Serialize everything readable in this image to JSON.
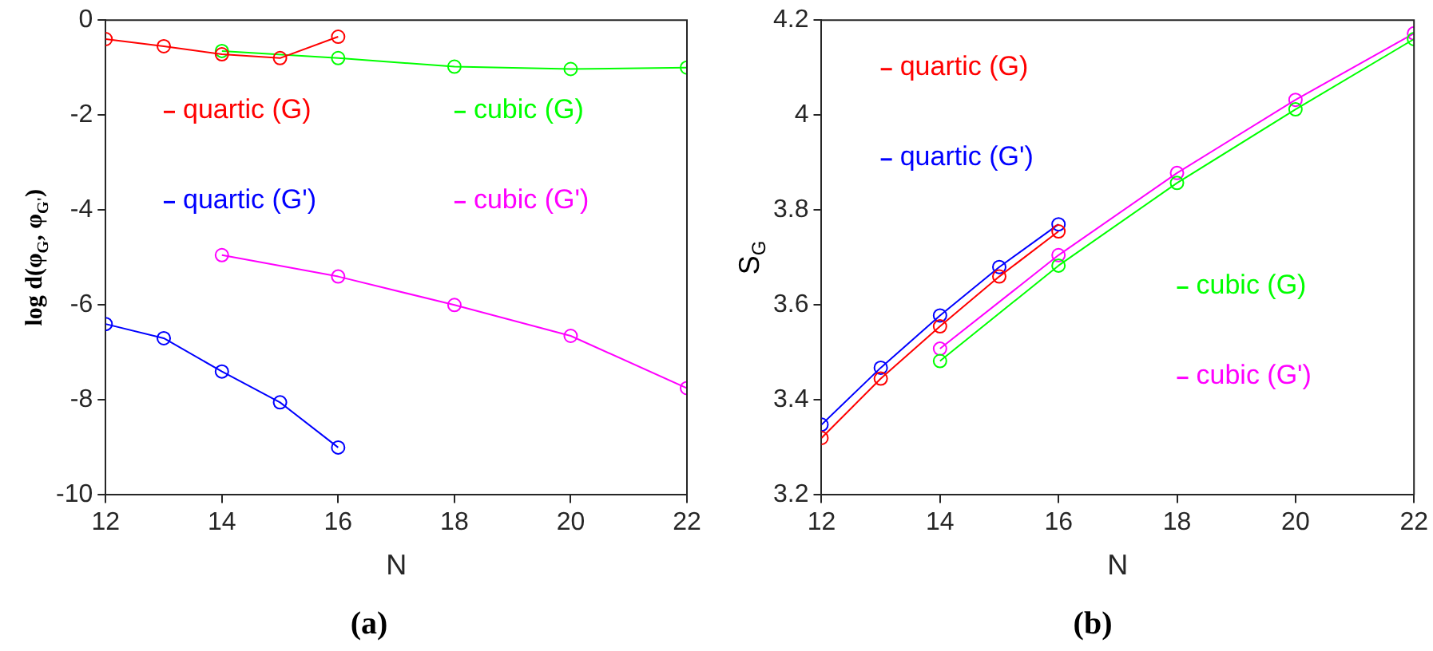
{
  "chart_data": [
    {
      "type": "line",
      "title": "(a)",
      "xlabel": "N",
      "ylabel": "log d(φ$_{G}$, φ$_{G'}$)",
      "xlim": [
        12,
        22
      ],
      "xticks": [
        12,
        14,
        16,
        18,
        20,
        22
      ],
      "ylim": [
        -10,
        0
      ],
      "yticks": [
        -10,
        -8,
        -6,
        -4,
        -2,
        0
      ],
      "marker": "circle",
      "grid": false,
      "legend": "top",
      "series": [
        {
          "name": "quartic (G)",
          "color": "#ff0000",
          "x": [
            12,
            13,
            14,
            15,
            16
          ],
          "values": [
            -0.4,
            -0.55,
            -0.72,
            -0.8,
            -0.35
          ]
        },
        {
          "name": "cubic (G)",
          "color": "#00ff00",
          "x": [
            14,
            16,
            18,
            20,
            22
          ],
          "values": [
            -0.65,
            -0.8,
            -0.98,
            -1.03,
            -1.0
          ]
        },
        {
          "name": "quartic (G')",
          "color": "#0000ff",
          "x": [
            12,
            13,
            14,
            15,
            16
          ],
          "values": [
            -6.4,
            -6.7,
            -7.4,
            -8.05,
            -9.0
          ]
        },
        {
          "name": "cubic (G')",
          "color": "#ff00ff",
          "x": [
            14,
            16,
            18,
            20,
            22
          ],
          "values": [
            -4.95,
            -5.4,
            -6.0,
            -6.65,
            -7.75
          ]
        }
      ]
    },
    {
      "type": "line",
      "title": "(b)",
      "xlabel": "N",
      "ylabel": "S$_{G}$",
      "xlim": [
        12,
        22
      ],
      "xticks": [
        12,
        14,
        16,
        18,
        20,
        22
      ],
      "ylim": [
        3.2,
        4.2
      ],
      "yticks": [
        3.2,
        3.4,
        3.6,
        3.8,
        4,
        4.2
      ],
      "marker": "circle",
      "grid": false,
      "legend": "top left",
      "series": [
        {
          "name": "quartic (G)",
          "color": "#ff0000",
          "x": [
            12,
            13,
            14,
            15,
            16
          ],
          "values": [
            3.32,
            3.445,
            3.555,
            3.66,
            3.755
          ]
        },
        {
          "name": "quartic (G')",
          "color": "#0000ff",
          "x": [
            12,
            13,
            14,
            15,
            16
          ],
          "values": [
            3.348,
            3.468,
            3.578,
            3.68,
            3.77
          ]
        },
        {
          "name": "cubic (G)",
          "color": "#00ff00",
          "x": [
            14,
            16,
            18,
            20,
            22
          ],
          "values": [
            3.482,
            3.683,
            3.857,
            4.012,
            4.16
          ]
        },
        {
          "name": "cubic (G')",
          "color": "#ff00ff",
          "x": [
            14,
            16,
            18,
            20,
            22
          ],
          "values": [
            3.508,
            3.705,
            3.878,
            4.032,
            4.172
          ]
        }
      ]
    }
  ]
}
